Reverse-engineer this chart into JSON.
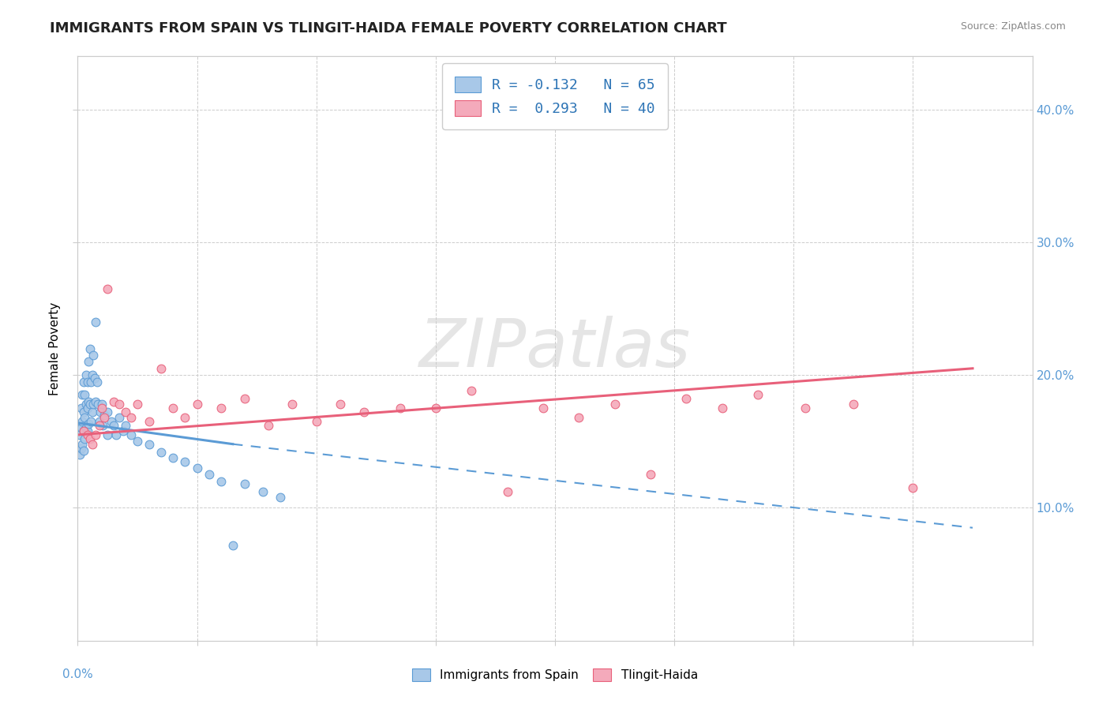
{
  "title": "IMMIGRANTS FROM SPAIN VS TLINGIT-HAIDA FEMALE POVERTY CORRELATION CHART",
  "source_text": "Source: ZipAtlas.com",
  "ylabel": "Female Poverty",
  "xlim": [
    0.0,
    0.8
  ],
  "ylim": [
    0.0,
    0.44
  ],
  "R1": -0.132,
  "N1": 65,
  "R2": 0.293,
  "N2": 40,
  "color_blue": "#A8C8E8",
  "color_pink": "#F4AABB",
  "color_blue_line": "#5B9BD5",
  "color_pink_line": "#E8607A",
  "color_blue_dark": "#2E75B6",
  "watermark": "ZIPatlas",
  "scatter_blue_x": [
    0.001,
    0.001,
    0.002,
    0.002,
    0.003,
    0.003,
    0.003,
    0.004,
    0.004,
    0.004,
    0.005,
    0.005,
    0.005,
    0.005,
    0.006,
    0.006,
    0.006,
    0.007,
    0.007,
    0.007,
    0.008,
    0.008,
    0.008,
    0.009,
    0.009,
    0.009,
    0.01,
    0.01,
    0.011,
    0.011,
    0.012,
    0.012,
    0.013,
    0.013,
    0.014,
    0.015,
    0.015,
    0.016,
    0.017,
    0.018,
    0.019,
    0.02,
    0.021,
    0.022,
    0.025,
    0.025,
    0.028,
    0.03,
    0.032,
    0.035,
    0.038,
    0.04,
    0.045,
    0.05,
    0.06,
    0.07,
    0.08,
    0.09,
    0.1,
    0.11,
    0.12,
    0.13,
    0.14,
    0.155,
    0.17
  ],
  "scatter_blue_y": [
    0.16,
    0.145,
    0.155,
    0.14,
    0.175,
    0.16,
    0.145,
    0.185,
    0.165,
    0.148,
    0.195,
    0.172,
    0.158,
    0.143,
    0.185,
    0.168,
    0.152,
    0.2,
    0.178,
    0.16,
    0.195,
    0.175,
    0.158,
    0.21,
    0.18,
    0.163,
    0.22,
    0.178,
    0.195,
    0.165,
    0.2,
    0.172,
    0.215,
    0.178,
    0.198,
    0.24,
    0.18,
    0.195,
    0.178,
    0.165,
    0.172,
    0.178,
    0.162,
    0.17,
    0.172,
    0.155,
    0.165,
    0.162,
    0.155,
    0.168,
    0.158,
    0.162,
    0.155,
    0.15,
    0.148,
    0.142,
    0.138,
    0.135,
    0.13,
    0.125,
    0.12,
    0.072,
    0.118,
    0.112,
    0.108
  ],
  "scatter_pink_x": [
    0.005,
    0.008,
    0.01,
    0.012,
    0.015,
    0.018,
    0.02,
    0.022,
    0.025,
    0.03,
    0.035,
    0.04,
    0.045,
    0.05,
    0.06,
    0.07,
    0.08,
    0.09,
    0.1,
    0.12,
    0.14,
    0.16,
    0.18,
    0.2,
    0.22,
    0.24,
    0.27,
    0.3,
    0.33,
    0.36,
    0.39,
    0.42,
    0.45,
    0.48,
    0.51,
    0.54,
    0.57,
    0.61,
    0.65,
    0.7
  ],
  "scatter_pink_y": [
    0.158,
    0.155,
    0.152,
    0.148,
    0.155,
    0.162,
    0.175,
    0.168,
    0.265,
    0.18,
    0.178,
    0.172,
    0.168,
    0.178,
    0.165,
    0.205,
    0.175,
    0.168,
    0.178,
    0.175,
    0.182,
    0.162,
    0.178,
    0.165,
    0.178,
    0.172,
    0.175,
    0.175,
    0.188,
    0.112,
    0.175,
    0.168,
    0.178,
    0.125,
    0.182,
    0.175,
    0.185,
    0.175,
    0.178,
    0.115
  ],
  "blue_line_start_x": 0.0,
  "blue_line_start_y": 0.164,
  "blue_line_solid_end_x": 0.13,
  "blue_line_solid_end_y": 0.148,
  "blue_line_dash_end_x": 0.75,
  "blue_line_dash_end_y": 0.085,
  "pink_line_start_x": 0.0,
  "pink_line_start_y": 0.155,
  "pink_line_end_x": 0.75,
  "pink_line_end_y": 0.205
}
